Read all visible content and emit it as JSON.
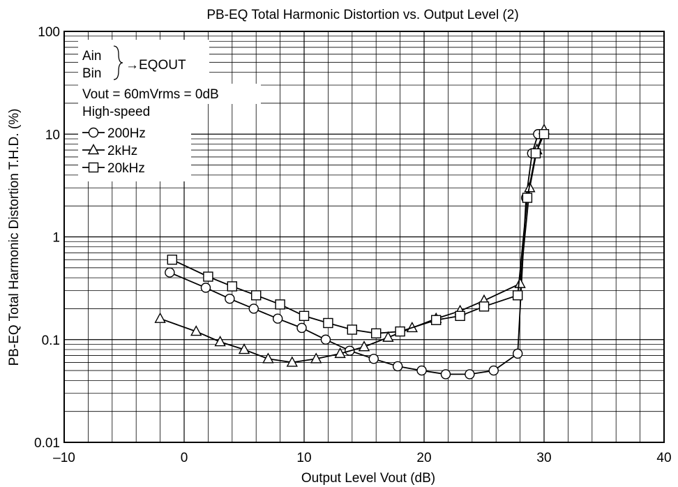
{
  "chart_data": {
    "type": "line",
    "title": "PB-EQ Total Harmonic Distortion vs. Output Level (2)",
    "xlabel": "Output Level  Vout  (dB)",
    "ylabel": "PB-EQ Total Harmonic Distortion  T.H.D.  (%)",
    "xlim": [
      -10,
      40
    ],
    "ylim": [
      0.01,
      100
    ],
    "yscale": "log",
    "grid": true,
    "x_ticks": [
      -10,
      0,
      10,
      20,
      30,
      40
    ],
    "x_tick_labels": [
      "–10",
      "0",
      "10",
      "20",
      "30",
      "40"
    ],
    "y_ticks": [
      0.01,
      0.1,
      1,
      10,
      100
    ],
    "y_tick_labels": [
      "0.01",
      "0.1",
      "1",
      "10",
      "100"
    ],
    "legend": {
      "position": "top-left",
      "line1": "Ain",
      "line2": "Bin",
      "arrow_text": "→EQOUT",
      "line3": "Vout = 60mVrms = 0dB",
      "line4": "High-speed"
    },
    "series": [
      {
        "name": "200Hz",
        "marker": "circle",
        "x": [
          -1.2,
          1.8,
          3.8,
          5.8,
          7.8,
          9.8,
          11.8,
          13.8,
          15.8,
          17.8,
          19.8,
          21.8,
          23.8,
          25.8,
          27.8,
          28.5,
          29.0,
          29.5
        ],
        "y": [
          0.45,
          0.32,
          0.25,
          0.2,
          0.16,
          0.13,
          0.1,
          0.078,
          0.065,
          0.055,
          0.05,
          0.046,
          0.046,
          0.05,
          0.073,
          2.4,
          6.5,
          10
        ]
      },
      {
        "name": "2kHz",
        "marker": "triangle",
        "x": [
          -2,
          1,
          3,
          5,
          7,
          9,
          11,
          13,
          15,
          17,
          19,
          21,
          23,
          25,
          28,
          28.8,
          29.4,
          30
        ],
        "y": [
          0.16,
          0.12,
          0.095,
          0.08,
          0.065,
          0.06,
          0.065,
          0.073,
          0.085,
          0.105,
          0.13,
          0.16,
          0.19,
          0.24,
          0.35,
          3,
          7,
          11
        ]
      },
      {
        "name": "20kHz",
        "marker": "square",
        "x": [
          -1,
          2,
          4,
          6,
          8,
          10,
          12,
          14,
          16,
          18,
          21,
          23,
          25,
          27.8,
          28.6,
          29.3,
          30
        ],
        "y": [
          0.6,
          0.41,
          0.33,
          0.27,
          0.22,
          0.17,
          0.145,
          0.125,
          0.115,
          0.12,
          0.155,
          0.17,
          0.21,
          0.27,
          2.4,
          6.5,
          10
        ]
      }
    ]
  }
}
